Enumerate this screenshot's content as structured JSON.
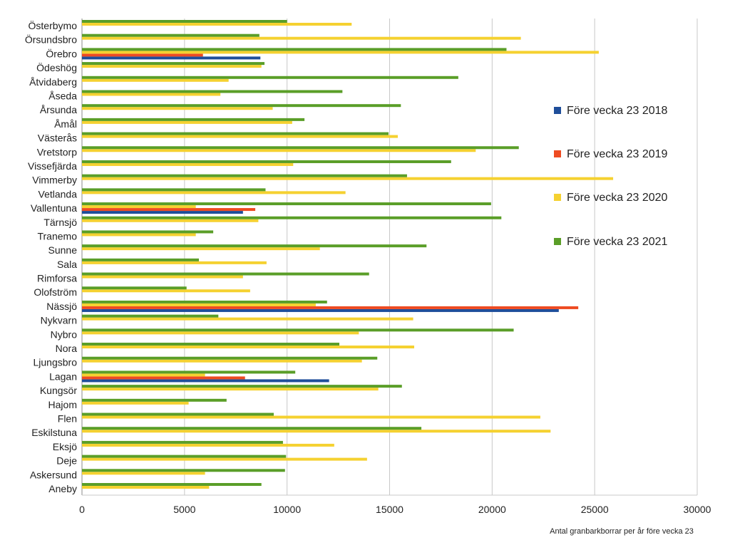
{
  "chart_data": {
    "type": "bar",
    "orientation": "horizontal",
    "title": "",
    "xlabel": "Antal granbarkborrar per år före vecka 23",
    "ylabel": "",
    "xlim": [
      0,
      30000
    ],
    "xticks": [
      0,
      5000,
      10000,
      15000,
      20000,
      25000,
      30000
    ],
    "grid": true,
    "legend_position": "right",
    "categories": [
      "Österbymo",
      "Örsundsbro",
      "Örebro",
      "Ödeshög",
      "Åtvidaberg",
      "Åseda",
      "Årsunda",
      "Åmål",
      "Västerås",
      "Vretstorp",
      "Vissefjärda",
      "Vimmerby",
      "Vetlanda",
      "Vallentuna",
      "Tärnsjö",
      "Tranemo",
      "Sunne",
      "Sala",
      "Rimforsa",
      "Olofström",
      "Nässjö",
      "Nykvarn",
      "Nybro",
      "Nora",
      "Ljungsbro",
      "Lagan",
      "Kungsör",
      "Hajom",
      "Flen",
      "Eskilstuna",
      "Eksjö",
      "Deje",
      "Askersund",
      "Aneby"
    ],
    "series": [
      {
        "name": "Före vecka 23 2018",
        "color": "#1f4e9a",
        "values": [
          null,
          null,
          8700,
          null,
          null,
          null,
          null,
          null,
          null,
          null,
          null,
          null,
          null,
          7850,
          null,
          null,
          null,
          null,
          null,
          null,
          23250,
          null,
          null,
          null,
          null,
          12050,
          null,
          null,
          null,
          null,
          null,
          null,
          null,
          null
        ]
      },
      {
        "name": "Före vecka 23 2019",
        "color": "#ee4b22",
        "values": [
          null,
          null,
          5900,
          null,
          null,
          null,
          null,
          null,
          null,
          null,
          null,
          null,
          null,
          8450,
          null,
          null,
          null,
          null,
          null,
          null,
          24200,
          null,
          null,
          null,
          null,
          7950,
          null,
          null,
          null,
          null,
          null,
          null,
          null,
          null
        ]
      },
      {
        "name": "Före vecka 23 2020",
        "color": "#f5d130",
        "values": [
          13150,
          21400,
          25200,
          8750,
          7150,
          6750,
          9300,
          10250,
          15400,
          19200,
          10300,
          25900,
          12850,
          5550,
          8600,
          5550,
          11600,
          9000,
          7850,
          8200,
          11400,
          16150,
          13500,
          16200,
          13650,
          6000,
          14450,
          5200,
          22350,
          22850,
          12300,
          13900,
          6000,
          6200
        ]
      },
      {
        "name": "Före vecka 23 2021",
        "color": "#5a9e28",
        "values": [
          10000,
          8650,
          20700,
          8900,
          18350,
          12700,
          15550,
          10850,
          14950,
          21300,
          18000,
          15850,
          8950,
          19950,
          20450,
          6400,
          16800,
          5700,
          14000,
          5100,
          11950,
          6650,
          21050,
          12550,
          14400,
          10400,
          15600,
          7050,
          9350,
          16550,
          9800,
          9950,
          9900,
          8750
        ]
      }
    ]
  }
}
